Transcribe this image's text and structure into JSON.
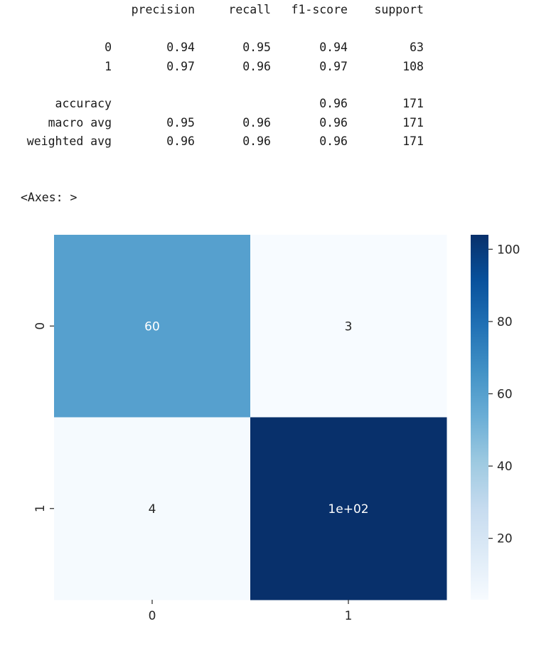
{
  "report": {
    "headers": [
      "precision",
      "recall",
      "f1-score",
      "support"
    ],
    "rows": [
      {
        "label": "0",
        "cells": [
          "0.94",
          "0.95",
          "0.94",
          "63"
        ]
      },
      {
        "label": "1",
        "cells": [
          "0.97",
          "0.96",
          "0.97",
          "108"
        ]
      },
      {
        "label": "accuracy",
        "cells": [
          "",
          "",
          "0.96",
          "171"
        ]
      },
      {
        "label": "macro avg",
        "cells": [
          "0.95",
          "0.96",
          "0.96",
          "171"
        ]
      },
      {
        "label": "weighted avg",
        "cells": [
          "0.96",
          "0.96",
          "0.96",
          "171"
        ]
      }
    ]
  },
  "axes_repr": "<Axes: >",
  "chart_data": {
    "type": "heatmap",
    "title": "",
    "xlabel": "",
    "ylabel": "",
    "x_categories": [
      "0",
      "1"
    ],
    "y_categories": [
      "0",
      "1"
    ],
    "values": [
      [
        60,
        3
      ],
      [
        4,
        104
      ]
    ],
    "annotations": [
      [
        "60",
        "3"
      ],
      [
        "4",
        "1e+02"
      ]
    ],
    "colormap": "Blues",
    "colorbar": {
      "ticks": [
        "20",
        "40",
        "60",
        "80",
        "100"
      ],
      "tick_values": [
        20,
        40,
        60,
        80,
        100
      ],
      "vmin": 3,
      "vmax": 104
    },
    "colors": {
      "low": "#f7fbff",
      "high": "#08306b",
      "text_dark": "#262626",
      "text_light": "#ffffff"
    }
  }
}
